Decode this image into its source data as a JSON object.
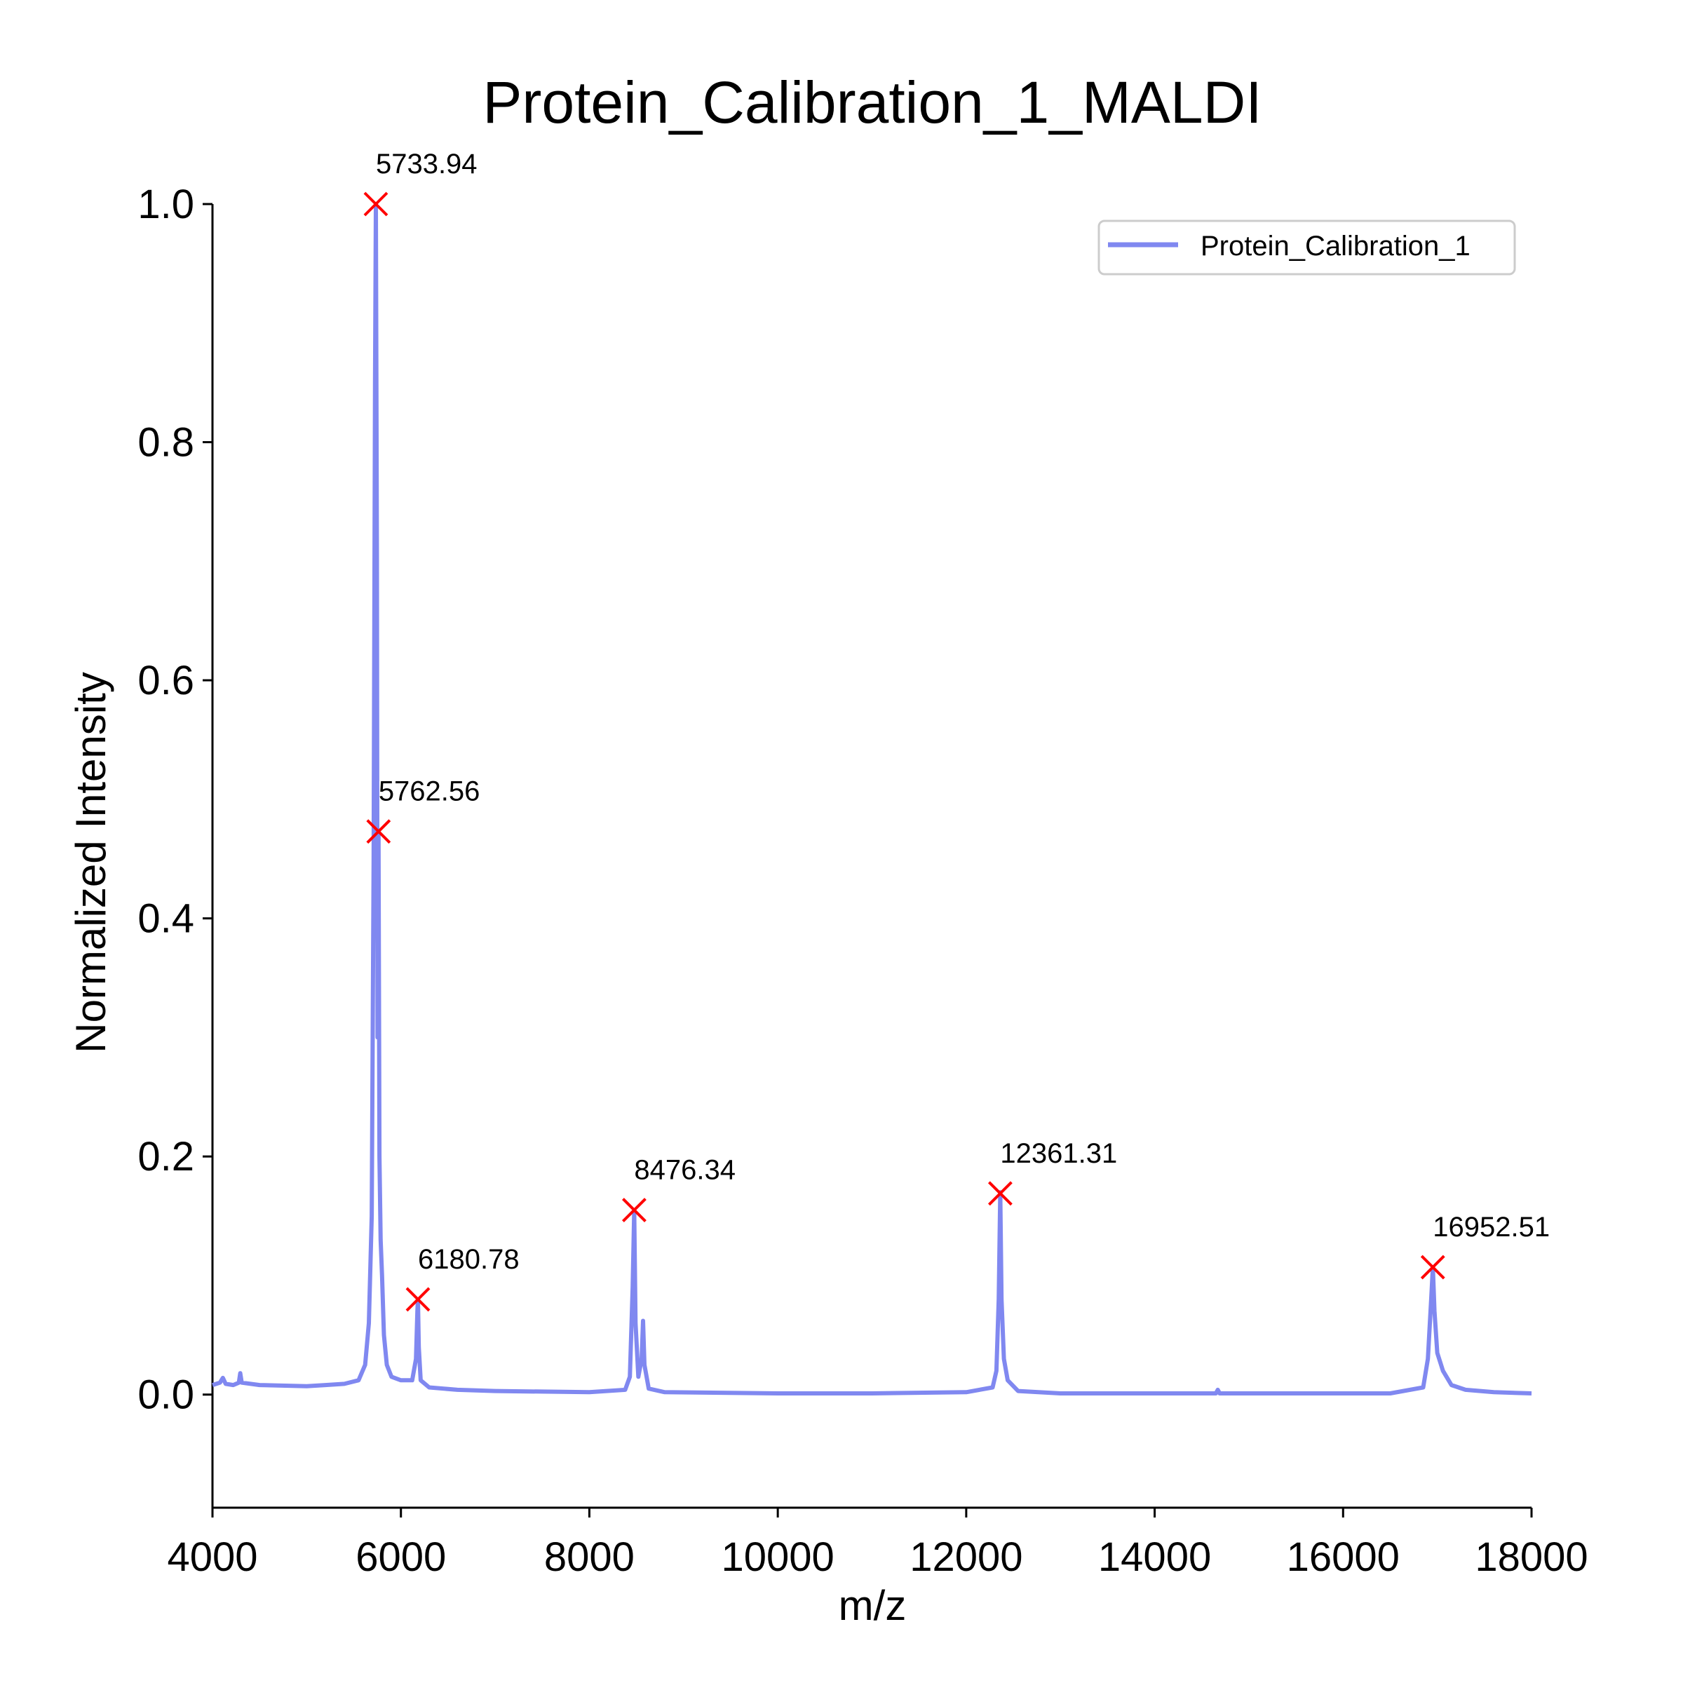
{
  "chart_data": {
    "type": "line",
    "title": "Protein_Calibration_1_MALDI",
    "xlabel": "m/z",
    "ylabel": "Normalized Intensity",
    "xlim": [
      4000,
      18000
    ],
    "ylim": [
      -0.095,
      1.0
    ],
    "xticks": [
      4000,
      6000,
      8000,
      10000,
      12000,
      14000,
      16000,
      18000
    ],
    "xtick_labels": [
      "4000",
      "6000",
      "8000",
      "10000",
      "12000",
      "14000",
      "16000",
      "18000"
    ],
    "yticks": [
      0.0,
      0.2,
      0.4,
      0.6,
      0.8,
      1.0
    ],
    "ytick_labels": [
      "0.0",
      "0.2",
      "0.4",
      "0.6",
      "0.8",
      "1.0"
    ],
    "grid": false,
    "legend_position": "top-right",
    "series": [
      {
        "name": "Protein_Calibration_1",
        "color": "#8088f0",
        "points": [
          [
            4000,
            0.008
          ],
          [
            4080,
            0.01
          ],
          [
            4110,
            0.014
          ],
          [
            4140,
            0.009
          ],
          [
            4220,
            0.008
          ],
          [
            4280,
            0.01
          ],
          [
            4295,
            0.018
          ],
          [
            4310,
            0.01
          ],
          [
            4500,
            0.008
          ],
          [
            5000,
            0.007
          ],
          [
            5200,
            0.008
          ],
          [
            5400,
            0.009
          ],
          [
            5550,
            0.012
          ],
          [
            5620,
            0.025
          ],
          [
            5660,
            0.06
          ],
          [
            5690,
            0.15
          ],
          [
            5710,
            0.45
          ],
          [
            5725,
            0.85
          ],
          [
            5733.94,
            1.0
          ],
          [
            5745,
            0.7
          ],
          [
            5752,
            0.3
          ],
          [
            5762.56,
            0.47
          ],
          [
            5772,
            0.2
          ],
          [
            5785,
            0.13
          ],
          [
            5800,
            0.1
          ],
          [
            5820,
            0.05
          ],
          [
            5850,
            0.025
          ],
          [
            5900,
            0.015
          ],
          [
            6000,
            0.012
          ],
          [
            6120,
            0.012
          ],
          [
            6160,
            0.03
          ],
          [
            6175,
            0.07
          ],
          [
            6180.78,
            0.08
          ],
          [
            6190,
            0.04
          ],
          [
            6210,
            0.012
          ],
          [
            6300,
            0.006
          ],
          [
            6600,
            0.004
          ],
          [
            7000,
            0.003
          ],
          [
            8000,
            0.002
          ],
          [
            8380,
            0.004
          ],
          [
            8430,
            0.015
          ],
          [
            8460,
            0.09
          ],
          [
            8476.34,
            0.155
          ],
          [
            8490,
            0.06
          ],
          [
            8520,
            0.015
          ],
          [
            8555,
            0.03
          ],
          [
            8570,
            0.062
          ],
          [
            8585,
            0.025
          ],
          [
            8630,
            0.005
          ],
          [
            8800,
            0.002
          ],
          [
            10000,
            0.001
          ],
          [
            11000,
            0.001
          ],
          [
            12000,
            0.002
          ],
          [
            12280,
            0.006
          ],
          [
            12320,
            0.02
          ],
          [
            12345,
            0.08
          ],
          [
            12361.31,
            0.17
          ],
          [
            12375,
            0.08
          ],
          [
            12400,
            0.03
          ],
          [
            12440,
            0.012
          ],
          [
            12550,
            0.003
          ],
          [
            13000,
            0.001
          ],
          [
            14000,
            0.001
          ],
          [
            14650,
            0.001
          ],
          [
            14670,
            0.004
          ],
          [
            14690,
            0.001
          ],
          [
            16500,
            0.001
          ],
          [
            16850,
            0.006
          ],
          [
            16900,
            0.03
          ],
          [
            16935,
            0.08
          ],
          [
            16952.51,
            0.107
          ],
          [
            16970,
            0.07
          ],
          [
            17000,
            0.035
          ],
          [
            17060,
            0.02
          ],
          [
            17150,
            0.008
          ],
          [
            17300,
            0.004
          ],
          [
            17600,
            0.002
          ],
          [
            18000,
            0.001
          ]
        ]
      }
    ],
    "peaks": [
      {
        "x": 5733.94,
        "y": 1.0,
        "label": "5733.94"
      },
      {
        "x": 5762.56,
        "y": 0.473,
        "label": "5762.56"
      },
      {
        "x": 6180.78,
        "y": 0.08,
        "label": "6180.78"
      },
      {
        "x": 8476.34,
        "y": 0.155,
        "label": "8476.34"
      },
      {
        "x": 12361.31,
        "y": 0.169,
        "label": "12361.31"
      },
      {
        "x": 16952.51,
        "y": 0.107,
        "label": "16952.51"
      }
    ],
    "peak_marker_color": "#ff0000"
  }
}
